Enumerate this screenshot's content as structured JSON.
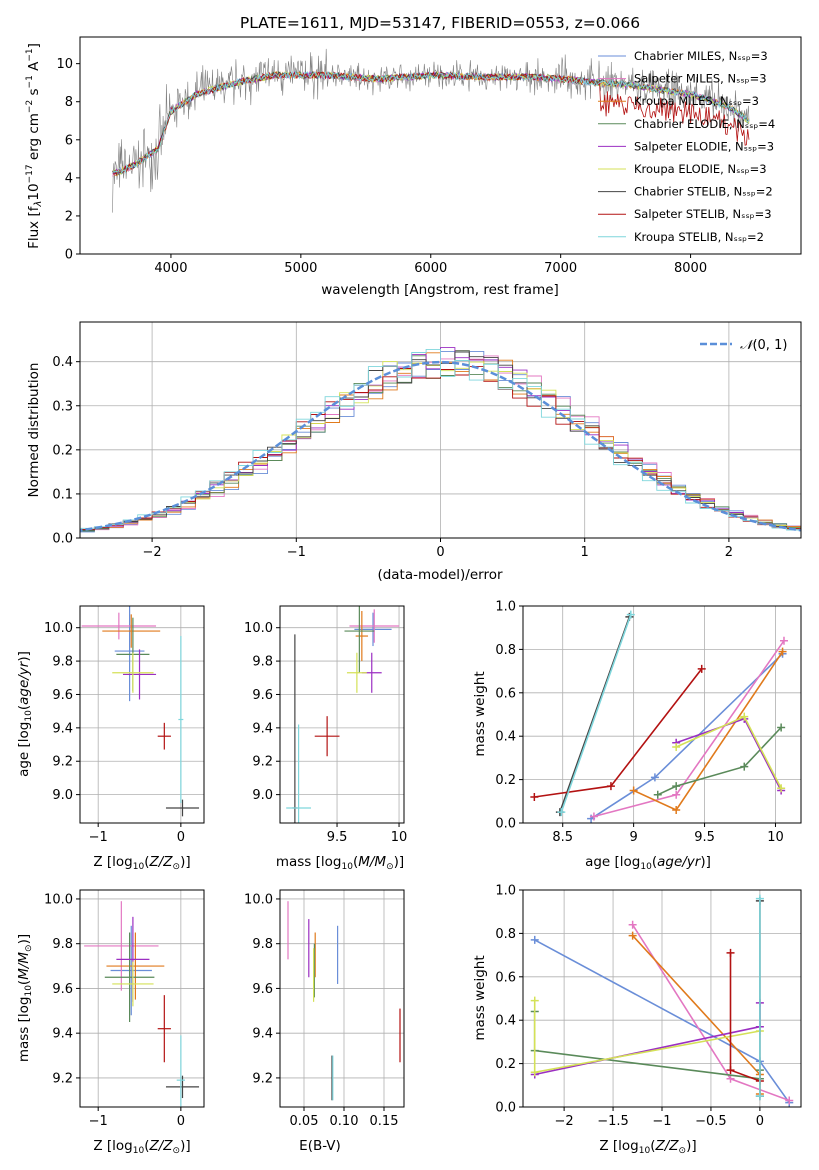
{
  "chart_data": [
    {
      "id": "spectrum",
      "type": "line",
      "title": "PLATE=1611, MJD=53147, FIBERID=0553, z=0.066",
      "xlabel": "wavelength [Angstrom, rest frame]",
      "ylabel": "Flux [fλ10⁻¹⁷ erg cm⁻² s⁻¹ A⁻¹]",
      "xlim": [
        3300,
        8850
      ],
      "ylim": [
        0,
        11.4
      ],
      "xticks": [
        4000,
        5000,
        6000,
        7000,
        8000
      ],
      "yticks": [
        0,
        2,
        4,
        6,
        8,
        10
      ],
      "grid": false,
      "legend_position": "upper right",
      "legend": [
        {
          "label": "Chabrier MILES, Nₛₛₚ=3",
          "color": "#6a8ed8"
        },
        {
          "label": "Salpeter MILES, Nₛₛₚ=3",
          "color": "#e377c2"
        },
        {
          "label": "Kroupa MILES, Nₛₛₚ=3",
          "color": "#e07a1c"
        },
        {
          "label": "Chabrier ELODIE, Nₛₛₚ=4",
          "color": "#5a8a5a"
        },
        {
          "label": "Salpeter ELODIE, Nₛₛₚ=3",
          "color": "#9b2fc2"
        },
        {
          "label": "Kroupa ELODIE, Nₛₛₚ=3",
          "color": "#d4e157"
        },
        {
          "label": "Chabrier STELIB, Nₛₛₚ=2",
          "color": "#444444"
        },
        {
          "label": "Salpeter STELIB, Nₛₛₚ=3",
          "color": "#b31212"
        },
        {
          "label": "Kroupa STELIB, Nₛₛₚ=2",
          "color": "#7fd6dc"
        }
      ],
      "data_color": "#808080",
      "continuum": {
        "x": [
          3550,
          3700,
          3900,
          4000,
          4200,
          4500,
          4800,
          5200,
          5600,
          6000,
          6400,
          6800,
          7000,
          7300,
          7500,
          8000,
          8300,
          8450
        ],
        "y": [
          4.2,
          4.6,
          5.5,
          7.5,
          8.4,
          9.0,
          9.4,
          9.4,
          9.2,
          9.4,
          9.3,
          9.3,
          9.2,
          9.0,
          8.9,
          8.4,
          7.7,
          7.0
        ]
      }
    },
    {
      "id": "residuals",
      "type": "histogram",
      "xlabel": "(data-model)/error",
      "ylabel": "Normed distribution",
      "xlim": [
        -2.5,
        2.5
      ],
      "ylim": [
        0,
        0.49
      ],
      "xticks": [
        -2,
        -1,
        0,
        1,
        2
      ],
      "yticks": [
        0.0,
        0.1,
        0.2,
        0.3,
        0.4
      ],
      "grid": true,
      "legend": [
        {
          "label": "𝒩(0, 1)",
          "color": "#5b8fd9",
          "style": "dashed"
        }
      ],
      "legend_position": "upper right"
    },
    {
      "id": "age_vs_Z",
      "type": "errorbar",
      "xlabel": "Z [log₁₀(Z/Z⊙)]",
      "ylabel": "age  [log₁₀(age/yr)]",
      "xlim": [
        -1.22,
        0.28
      ],
      "ylim": [
        8.83,
        10.13
      ],
      "xticks": [
        -1,
        0
      ],
      "yticks": [
        9.0,
        9.2,
        9.4,
        9.6,
        9.8,
        10.0
      ],
      "grid": true,
      "points": [
        {
          "x": -0.62,
          "y": 9.86,
          "xerr": 0.18,
          "yerr": 0.3,
          "color": "#6a8ed8"
        },
        {
          "x": -0.75,
          "y": 10.01,
          "xerr": 0.45,
          "yerr": 0.08,
          "color": "#e377c2"
        },
        {
          "x": -0.6,
          "y": 9.98,
          "xerr": 0.35,
          "yerr": 0.1,
          "color": "#e07a1c"
        },
        {
          "x": -0.58,
          "y": 9.84,
          "xerr": 0.2,
          "yerr": 0.22,
          "color": "#5a8a5a"
        },
        {
          "x": -0.5,
          "y": 9.72,
          "xerr": 0.2,
          "yerr": 0.15,
          "color": "#9b2fc2"
        },
        {
          "x": -0.58,
          "y": 9.73,
          "xerr": 0.25,
          "yerr": 0.12,
          "color": "#d4e157"
        },
        {
          "x": 0.02,
          "y": 8.92,
          "xerr": 0.2,
          "yerr": 0.05,
          "color": "#444444"
        },
        {
          "x": -0.2,
          "y": 9.35,
          "xerr": 0.08,
          "yerr": 0.08,
          "color": "#b31212"
        },
        {
          "x": 0.0,
          "y": 9.45,
          "xerr": 0.03,
          "yerr": 0.5,
          "color": "#7fd6dc"
        }
      ]
    },
    {
      "id": "age_vs_mass",
      "type": "errorbar",
      "xlabel": "mass [log₁₀(M/M⊙)]",
      "ylabel": "",
      "xlim": [
        9.04,
        10.04
      ],
      "ylim": [
        8.83,
        10.13
      ],
      "xticks": [
        9.5,
        10.0
      ],
      "yticks": [
        9.0,
        9.2,
        9.4,
        9.6,
        9.8,
        10.0
      ],
      "grid": true,
      "points": [
        {
          "x": 9.79,
          "y": 9.99,
          "xerr": 0.15,
          "yerr": 0.1,
          "color": "#6a8ed8"
        },
        {
          "x": 9.8,
          "y": 10.01,
          "xerr": 0.2,
          "yerr": 0.1,
          "color": "#e377c2"
        },
        {
          "x": 9.7,
          "y": 9.95,
          "xerr": 0.05,
          "yerr": 0.15,
          "color": "#e07a1c"
        },
        {
          "x": 9.68,
          "y": 9.98,
          "xerr": 0.12,
          "yerr": 0.25,
          "color": "#5a8a5a"
        },
        {
          "x": 9.78,
          "y": 9.73,
          "xerr": 0.08,
          "yerr": 0.12,
          "color": "#9b2fc2"
        },
        {
          "x": 9.66,
          "y": 9.73,
          "xerr": 0.08,
          "yerr": 0.12,
          "color": "#d4e157"
        },
        {
          "x": 9.16,
          "y": 8.92,
          "xerr": 0.02,
          "yerr": 1.04,
          "color": "#444444"
        },
        {
          "x": 9.42,
          "y": 9.35,
          "xerr": 0.1,
          "yerr": 0.12,
          "color": "#b31212"
        },
        {
          "x": 9.19,
          "y": 8.92,
          "xerr": 0.1,
          "yerr": 0.5,
          "color": "#7fd6dc"
        }
      ]
    },
    {
      "id": "massweight_vs_age",
      "type": "line",
      "xlabel": "age  [log₁₀(age/yr)]",
      "ylabel": "mass weight",
      "xlim": [
        8.22,
        10.18
      ],
      "ylim": [
        0,
        1
      ],
      "xticks": [
        8.5,
        9.0,
        9.5,
        10.0
      ],
      "yticks": [
        0.0,
        0.2,
        0.4,
        0.6,
        0.8,
        1.0
      ],
      "grid": true,
      "series": [
        {
          "color": "#6a8ed8",
          "x": [
            8.7,
            9.15,
            10.05
          ],
          "y": [
            0.02,
            0.21,
            0.78
          ]
        },
        {
          "color": "#e377c2",
          "x": [
            8.72,
            9.3,
            10.06
          ],
          "y": [
            0.03,
            0.13,
            0.84
          ]
        },
        {
          "color": "#e07a1c",
          "x": [
            9.0,
            9.3,
            10.05
          ],
          "y": [
            0.15,
            0.06,
            0.79
          ]
        },
        {
          "color": "#5a8a5a",
          "x": [
            9.17,
            9.3,
            9.78,
            10.04
          ],
          "y": [
            0.13,
            0.17,
            0.26,
            0.44
          ]
        },
        {
          "color": "#9b2fc2",
          "x": [
            9.3,
            9.78,
            10.04
          ],
          "y": [
            0.37,
            0.48,
            0.15
          ]
        },
        {
          "color": "#d4e157",
          "x": [
            9.3,
            9.78,
            10.04
          ],
          "y": [
            0.35,
            0.49,
            0.16
          ]
        },
        {
          "color": "#444444",
          "x": [
            8.48,
            8.97
          ],
          "y": [
            0.05,
            0.95
          ]
        },
        {
          "color": "#b31212",
          "x": [
            8.3,
            8.84,
            9.48
          ],
          "y": [
            0.12,
            0.17,
            0.71
          ]
        },
        {
          "color": "#7fd6dc",
          "x": [
            8.49,
            8.98
          ],
          "y": [
            0.05,
            0.96
          ]
        }
      ]
    },
    {
      "id": "mass_vs_Z",
      "type": "errorbar",
      "xlabel": "Z [log₁₀(Z/Z⊙)]",
      "ylabel": "mass [log₁₀(M/M⊙)]",
      "xlim": [
        -1.22,
        0.28
      ],
      "ylim": [
        9.07,
        10.04
      ],
      "xticks": [
        -1,
        0
      ],
      "yticks": [
        9.2,
        9.4,
        9.6,
        9.8,
        10.0
      ],
      "grid": true,
      "points": [
        {
          "x": -0.6,
          "y": 9.68,
          "xerr": 0.25,
          "yerr": 0.2,
          "color": "#6a8ed8"
        },
        {
          "x": -0.72,
          "y": 9.79,
          "xerr": 0.45,
          "yerr": 0.2,
          "color": "#e377c2"
        },
        {
          "x": -0.55,
          "y": 9.7,
          "xerr": 0.35,
          "yerr": 0.15,
          "color": "#e07a1c"
        },
        {
          "x": -0.62,
          "y": 9.65,
          "xerr": 0.3,
          "yerr": 0.2,
          "color": "#5a8a5a"
        },
        {
          "x": -0.58,
          "y": 9.73,
          "xerr": 0.2,
          "yerr": 0.19,
          "color": "#9b2fc2"
        },
        {
          "x": -0.58,
          "y": 9.62,
          "xerr": 0.25,
          "yerr": 0.1,
          "color": "#d4e157"
        },
        {
          "x": 0.02,
          "y": 9.16,
          "xerr": 0.2,
          "yerr": 0.05,
          "color": "#444444"
        },
        {
          "x": -0.2,
          "y": 9.42,
          "xerr": 0.08,
          "yerr": 0.15,
          "color": "#b31212"
        },
        {
          "x": 0.0,
          "y": 9.19,
          "xerr": 0.05,
          "yerr": 0.2,
          "color": "#7fd6dc"
        }
      ]
    },
    {
      "id": "mass_vs_ebv",
      "type": "errorbar",
      "xlabel": "E(B-V)",
      "ylabel": "",
      "xlim": [
        0.02,
        0.175
      ],
      "ylim": [
        9.07,
        10.04
      ],
      "xticks": [
        0.05,
        0.1,
        0.15
      ],
      "yticks": [
        9.2,
        9.4,
        9.6,
        9.8,
        10.0
      ],
      "xticklabels": [
        "0.05",
        "0.10",
        "0.15"
      ],
      "grid": true,
      "points": [
        {
          "x": 0.092,
          "y": 9.75,
          "yerr": 0.13,
          "color": "#6a8ed8"
        },
        {
          "x": 0.03,
          "y": 9.86,
          "yerr": 0.13,
          "color": "#e377c2"
        },
        {
          "x": 0.064,
          "y": 9.75,
          "yerr": 0.1,
          "color": "#e07a1c"
        },
        {
          "x": 0.063,
          "y": 9.68,
          "yerr": 0.12,
          "color": "#5a8a5a"
        },
        {
          "x": 0.056,
          "y": 9.78,
          "yerr": 0.13,
          "color": "#9b2fc2"
        },
        {
          "x": 0.062,
          "y": 9.66,
          "yerr": 0.12,
          "color": "#d4e157"
        },
        {
          "x": 0.085,
          "y": 9.2,
          "yerr": 0.1,
          "color": "#444444"
        },
        {
          "x": 0.17,
          "y": 9.39,
          "yerr": 0.12,
          "color": "#b31212"
        },
        {
          "x": 0.086,
          "y": 9.2,
          "yerr": 0.1,
          "color": "#7fd6dc"
        }
      ]
    },
    {
      "id": "massweight_vs_Z",
      "type": "line",
      "xlabel": "Z [log₁₀(Z/Z⊙)]",
      "ylabel": "mass weight",
      "xlim": [
        -2.42,
        0.42
      ],
      "ylim": [
        0,
        1
      ],
      "xticks": [
        -2.0,
        -1.5,
        -1.0,
        -0.5,
        0.0
      ],
      "yticks": [
        0.0,
        0.2,
        0.4,
        0.6,
        0.8,
        1.0
      ],
      "grid": true,
      "series": [
        {
          "color": "#6a8ed8",
          "x": [
            -2.3,
            0.0,
            0.3
          ],
          "y": [
            0.77,
            0.21,
            0.02
          ]
        },
        {
          "color": "#e377c2",
          "x": [
            -1.3,
            -0.3,
            0.3
          ],
          "y": [
            0.84,
            0.13,
            0.03
          ]
        },
        {
          "color": "#e07a1c",
          "x": [
            -1.3,
            0.0,
            0.0
          ],
          "y": [
            0.79,
            0.15,
            0.06
          ]
        },
        {
          "color": "#5a8a5a",
          "x": [
            -2.3,
            -2.3,
            0.0,
            0.0
          ],
          "y": [
            0.44,
            0.26,
            0.13,
            0.17
          ]
        },
        {
          "color": "#9b2fc2",
          "x": [
            -2.3,
            0.0,
            0.0
          ],
          "y": [
            0.15,
            0.37,
            0.48
          ]
        },
        {
          "color": "#d4e157",
          "x": [
            -2.3,
            -2.3,
            0.0
          ],
          "y": [
            0.49,
            0.16,
            0.35
          ]
        },
        {
          "color": "#444444",
          "x": [
            0.0,
            0.0
          ],
          "y": [
            0.05,
            0.95
          ]
        },
        {
          "color": "#b31212",
          "x": [
            -0.3,
            -0.3,
            0.0
          ],
          "y": [
            0.71,
            0.17,
            0.12
          ]
        },
        {
          "color": "#7fd6dc",
          "x": [
            0.0,
            0.0
          ],
          "y": [
            0.05,
            0.96
          ]
        }
      ]
    }
  ]
}
